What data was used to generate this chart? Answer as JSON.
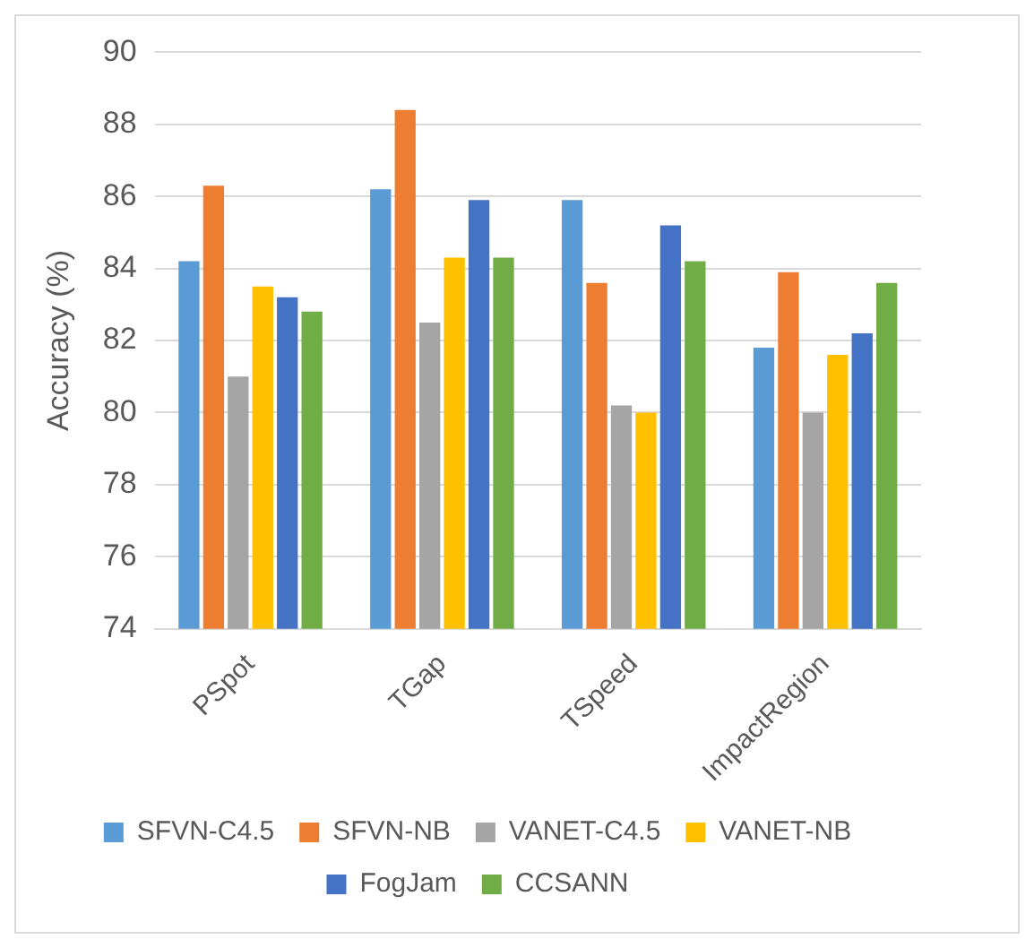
{
  "chart_data": {
    "type": "bar",
    "ylabel": "Accuracy (%)",
    "categories": [
      "PSpot",
      "TGap",
      "TSpeed",
      "ImpactRegion"
    ],
    "series": [
      {
        "name": "SFVN-C4.5",
        "color": "#5b9bd5",
        "values": [
          84.2,
          86.2,
          85.9,
          81.8
        ]
      },
      {
        "name": "SFVN-NB",
        "color": "#ed7d31",
        "values": [
          86.3,
          88.4,
          83.6,
          83.9
        ]
      },
      {
        "name": "VANET-C4.5",
        "color": "#a5a5a5",
        "values": [
          81.0,
          82.5,
          80.2,
          80.0
        ]
      },
      {
        "name": "VANET-NB",
        "color": "#ffc000",
        "values": [
          83.5,
          84.3,
          80.0,
          81.6
        ]
      },
      {
        "name": "FogJam",
        "color": "#4472c4",
        "values": [
          83.2,
          85.9,
          85.2,
          82.2
        ]
      },
      {
        "name": "CCSANN",
        "color": "#70ad47",
        "values": [
          82.8,
          84.3,
          84.2,
          83.6
        ]
      }
    ],
    "ylim": [
      74,
      90
    ],
    "yticks": [
      74,
      76,
      78,
      80,
      82,
      84,
      86,
      88,
      90
    ],
    "grid": "y",
    "legend": "bottom"
  }
}
